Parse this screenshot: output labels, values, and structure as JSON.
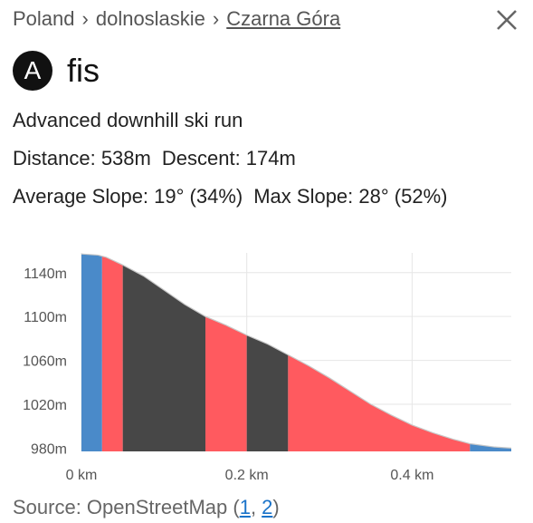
{
  "breadcrumb": {
    "country": "Poland",
    "region": "dolnoslaskie",
    "resort": "Czarna Góra",
    "separator": "›"
  },
  "header": {
    "badge": "A",
    "title": "fis"
  },
  "details": {
    "description": "Advanced downhill ski run",
    "distance": "Distance: 538m",
    "descent": "Descent: 174m",
    "average_slope": "Average Slope: 19° (34%)",
    "max_slope": "Max Slope: 28° (52%)"
  },
  "colors": {
    "blue": "#4a8ac9",
    "red": "#ff5a5f",
    "dark": "#474747",
    "grid": "#e6e6e6"
  },
  "chart_data": {
    "type": "area",
    "x_unit": "km",
    "y_unit": "m",
    "xlim": [
      0,
      0.52
    ],
    "ylim": [
      977,
      1158
    ],
    "y_ticks": [
      980,
      1020,
      1060,
      1100,
      1140
    ],
    "y_tick_labels": [
      "980m",
      "1020m",
      "1060m",
      "1100m",
      "1140m"
    ],
    "x_ticks": [
      0,
      0.2,
      0.4
    ],
    "x_tick_labels": [
      "0 km",
      "0.2 km",
      "0.4 km"
    ],
    "profile": [
      {
        "x": 0.0,
        "y": 1157
      },
      {
        "x": 0.02,
        "y": 1156
      },
      {
        "x": 0.03,
        "y": 1154
      },
      {
        "x": 0.05,
        "y": 1147
      },
      {
        "x": 0.075,
        "y": 1137
      },
      {
        "x": 0.1,
        "y": 1124
      },
      {
        "x": 0.125,
        "y": 1111
      },
      {
        "x": 0.15,
        "y": 1100
      },
      {
        "x": 0.175,
        "y": 1092
      },
      {
        "x": 0.2,
        "y": 1083
      },
      {
        "x": 0.225,
        "y": 1075
      },
      {
        "x": 0.25,
        "y": 1065
      },
      {
        "x": 0.275,
        "y": 1055
      },
      {
        "x": 0.3,
        "y": 1044
      },
      {
        "x": 0.325,
        "y": 1032
      },
      {
        "x": 0.35,
        "y": 1020
      },
      {
        "x": 0.375,
        "y": 1010
      },
      {
        "x": 0.4,
        "y": 1001
      },
      {
        "x": 0.425,
        "y": 994
      },
      {
        "x": 0.45,
        "y": 988
      },
      {
        "x": 0.47,
        "y": 984
      },
      {
        "x": 0.5,
        "y": 981
      },
      {
        "x": 0.52,
        "y": 980
      }
    ],
    "segments": [
      {
        "x0": 0.0,
        "x1": 0.025,
        "color": "blue"
      },
      {
        "x0": 0.025,
        "x1": 0.05,
        "color": "red"
      },
      {
        "x0": 0.05,
        "x1": 0.15,
        "color": "dark"
      },
      {
        "x0": 0.15,
        "x1": 0.2,
        "color": "red"
      },
      {
        "x0": 0.2,
        "x1": 0.25,
        "color": "dark"
      },
      {
        "x0": 0.25,
        "x1": 0.47,
        "color": "red"
      },
      {
        "x0": 0.47,
        "x1": 0.52,
        "color": "blue"
      }
    ]
  },
  "source": {
    "prefix": "Source: OpenStreetMap (",
    "link1": "1",
    "comma": ", ",
    "link2": "2",
    "suffix": ")"
  }
}
